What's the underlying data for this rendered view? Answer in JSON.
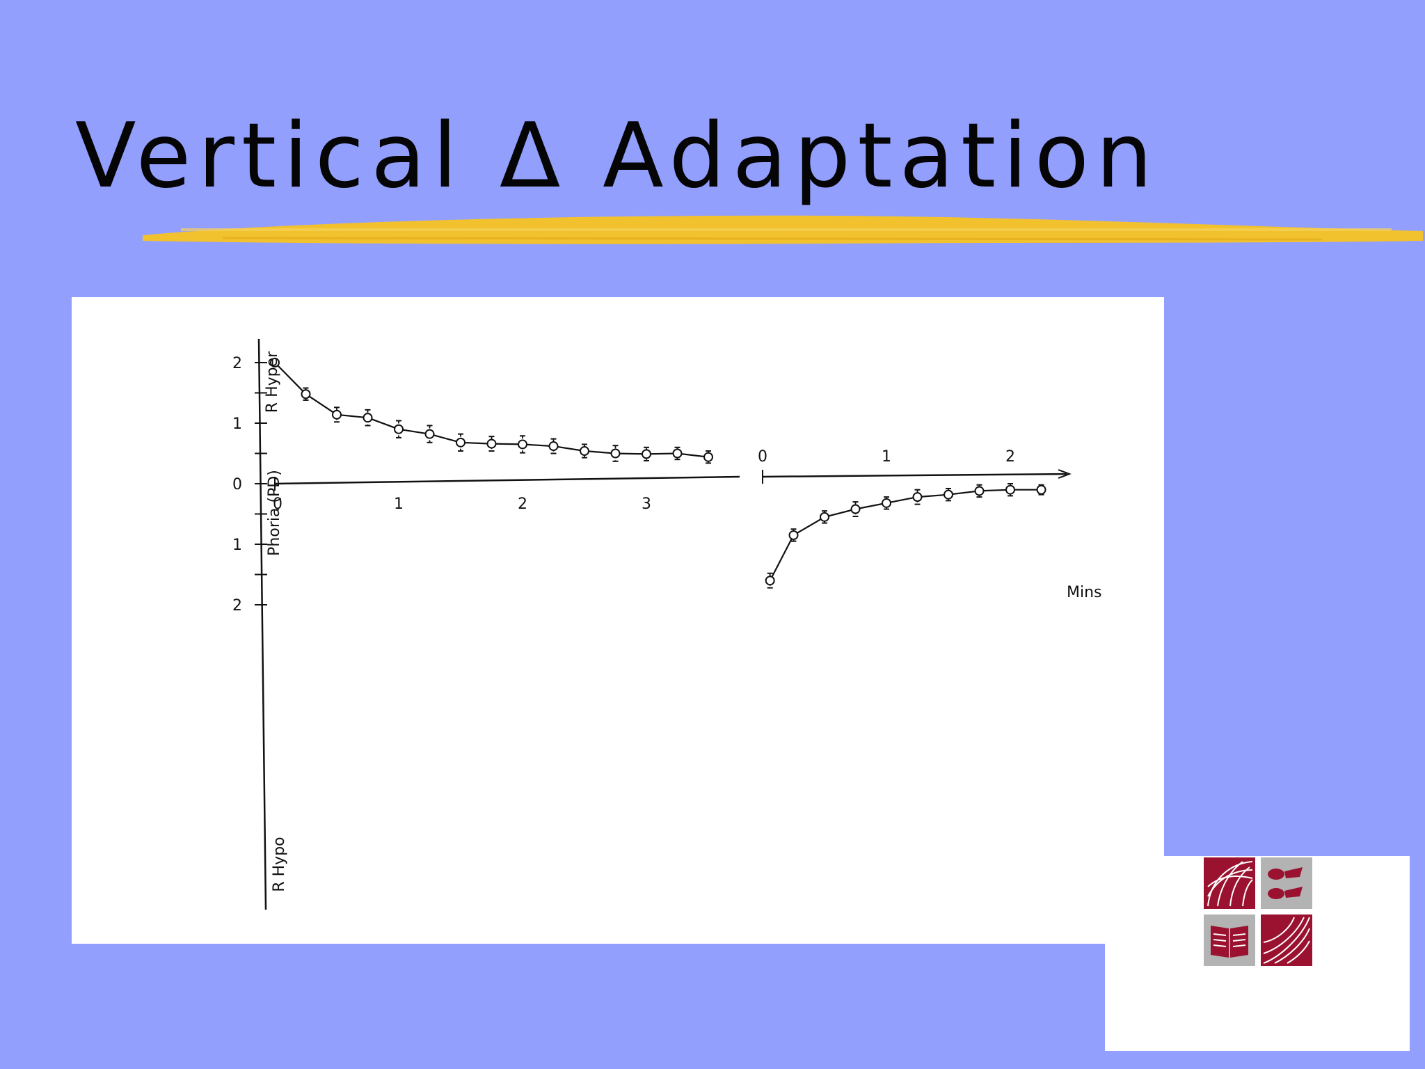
{
  "slide": {
    "title": "Vertical Δ Adaptation",
    "background_color": "#939ffd",
    "underline_color": "#f2c12e"
  },
  "chart_data": {
    "type": "scatter",
    "ylabel_top": "R Hyper",
    "ylabel_middle": "Phoria (PD)",
    "ylabel_bottom": "R Hypo",
    "y_ticks": [
      {
        "label": "2",
        "value": 2
      },
      {
        "label": "1",
        "value": 1
      },
      {
        "label": "0",
        "value": 0
      },
      {
        "label": "1",
        "value": -1
      },
      {
        "label": "2",
        "value": -2
      }
    ],
    "ylim": [
      -2,
      2
    ],
    "panels": [
      {
        "x_ticks": [
          "0",
          "1",
          "2",
          "3"
        ],
        "x_tick_values": [
          0,
          1,
          2,
          3
        ],
        "xlim": [
          0,
          3.5
        ],
        "series": [
          {
            "x": [
              0,
              0.25,
              0.5,
              0.75,
              1.0,
              1.25,
              1.5,
              1.75,
              2.0,
              2.25,
              2.5,
              2.75,
              3.0,
              3.25,
              3.5
            ],
            "y": [
              2.0,
              1.48,
              1.14,
              1.09,
              0.9,
              0.82,
              0.68,
              0.66,
              0.65,
              0.62,
              0.54,
              0.5,
              0.49,
              0.5,
              0.44
            ],
            "err": [
              0,
              0.1,
              0.12,
              0.13,
              0.14,
              0.14,
              0.14,
              0.12,
              0.14,
              0.12,
              0.11,
              0.13,
              0.11,
              0.1,
              0.1
            ]
          }
        ]
      },
      {
        "x_ticks": [
          "0",
          "1",
          "2"
        ],
        "x_tick_values": [
          0,
          1,
          2
        ],
        "xlim": [
          0,
          2.4
        ],
        "x_unit": "Mins",
        "series": [
          {
            "x": [
              0.06,
              0.25,
              0.5,
              0.75,
              1.0,
              1.25,
              1.5,
              1.75,
              2.0,
              2.25
            ],
            "y": [
              -1.6,
              -0.85,
              -0.55,
              -0.42,
              -0.32,
              -0.22,
              -0.18,
              -0.12,
              -0.1,
              -0.1
            ],
            "err": [
              0.12,
              0.1,
              0.1,
              0.12,
              0.1,
              0.12,
              0.1,
              0.1,
              0.1,
              0.08
            ]
          }
        ]
      }
    ]
  },
  "logo": {
    "tile_colors": [
      "#9a1230",
      "#b3b3b3",
      "#b3b3b3",
      "#9a1230"
    ],
    "icon_names": [
      "globe-icon",
      "hands-icon",
      "book-icon",
      "globe-grid-icon"
    ]
  }
}
